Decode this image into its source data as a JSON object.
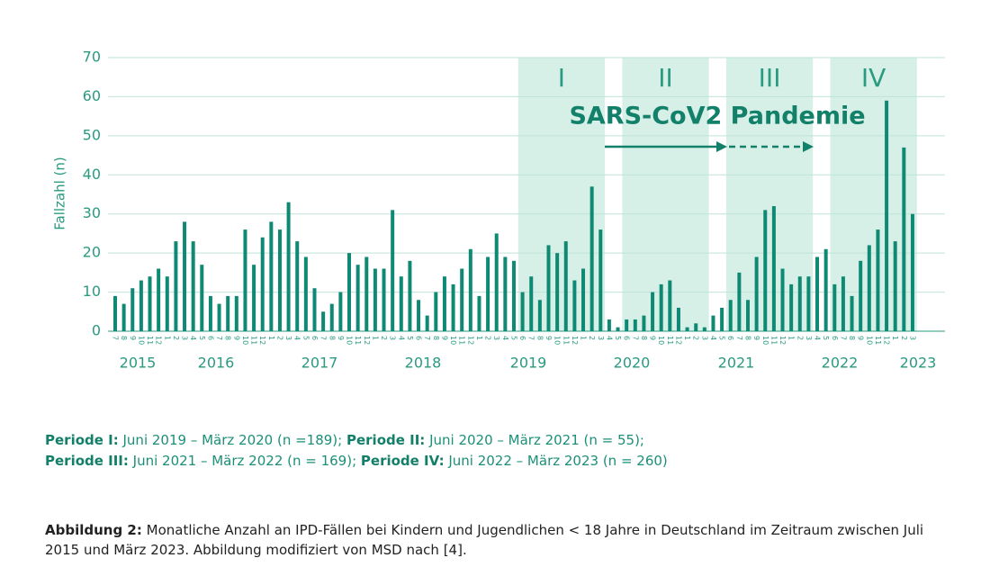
{
  "chart_data": {
    "type": "bar",
    "y_label": "Fallzahl (n)",
    "annotation": "SARS-CoV2 Pandemie",
    "periods": [
      "I",
      "II",
      "III",
      "IV"
    ],
    "categories": [
      "7",
      "8",
      "9",
      "10",
      "11",
      "12",
      "1",
      "2",
      "3",
      "4",
      "5",
      "6",
      "7",
      "8",
      "9",
      "10",
      "11",
      "12",
      "1",
      "2",
      "3",
      "4",
      "5",
      "6",
      "7",
      "8",
      "9",
      "10",
      "11",
      "12",
      "1",
      "2",
      "3",
      "4",
      "5",
      "6",
      "7",
      "8",
      "9",
      "10",
      "11",
      "12",
      "1",
      "2",
      "3",
      "4",
      "5",
      "6",
      "7",
      "8",
      "9",
      "10",
      "11",
      "12",
      "1",
      "2",
      "3",
      "4",
      "5",
      "6",
      "7",
      "8",
      "9",
      "10",
      "11",
      "12",
      "1",
      "2",
      "3",
      "4",
      "5",
      "6",
      "7",
      "8",
      "9",
      "10",
      "11",
      "12",
      "1",
      "2",
      "3",
      "4",
      "5",
      "6",
      "7",
      "8",
      "9",
      "10",
      "11",
      "12",
      "1",
      "2",
      "3"
    ],
    "values": [
      9,
      7,
      11,
      13,
      14,
      16,
      14,
      23,
      28,
      23,
      17,
      9,
      7,
      9,
      9,
      26,
      17,
      24,
      28,
      26,
      33,
      23,
      19,
      11,
      5,
      7,
      10,
      20,
      17,
      19,
      16,
      16,
      31,
      14,
      18,
      8,
      4,
      10,
      14,
      12,
      16,
      21,
      9,
      19,
      25,
      19,
      18,
      10,
      14,
      8,
      22,
      20,
      23,
      13,
      16,
      37,
      26,
      3,
      1,
      3,
      3,
      4,
      10,
      12,
      13,
      6,
      1,
      2,
      1,
      4,
      6,
      8,
      15,
      8,
      19,
      31,
      32,
      16,
      12,
      14,
      14,
      19,
      21,
      12,
      14,
      9,
      18,
      22,
      26,
      59,
      23,
      47,
      30
    ],
    "years": [
      "2015",
      "2016",
      "2017",
      "2018",
      "2019",
      "2020",
      "2021",
      "2022",
      "2023"
    ],
    "color": "#0e8a74",
    "ylim": [
      0,
      70
    ],
    "yticks": [
      0,
      10,
      20,
      30,
      40,
      50,
      60,
      70
    ],
    "grid": true
  },
  "notes": [
    [
      {
        "bold": "Periode I:",
        "text": " Juni 2019 – März 2020 (n =189); "
      },
      {
        "bold": "Periode II:",
        "text": " Juni 2020 – März 2021 (n = 55);"
      }
    ],
    [
      {
        "bold": "Periode III:",
        "text": " Juni 2021 – März 2022 (n = 169); "
      },
      {
        "bold": "Periode IV:",
        "text": " Juni 2022 – März 2023 (n = 260)"
      }
    ]
  ],
  "caption": {
    "bold": "Abbildung 2:",
    "text": " Monatliche Anzahl an IPD-Fällen bei Kindern und Jugendlichen < 18 Jahre in Deutschland im Zeitraum zwischen Juli 2015 und März 2023. Abbildung modifiziert von MSD nach [4]."
  }
}
